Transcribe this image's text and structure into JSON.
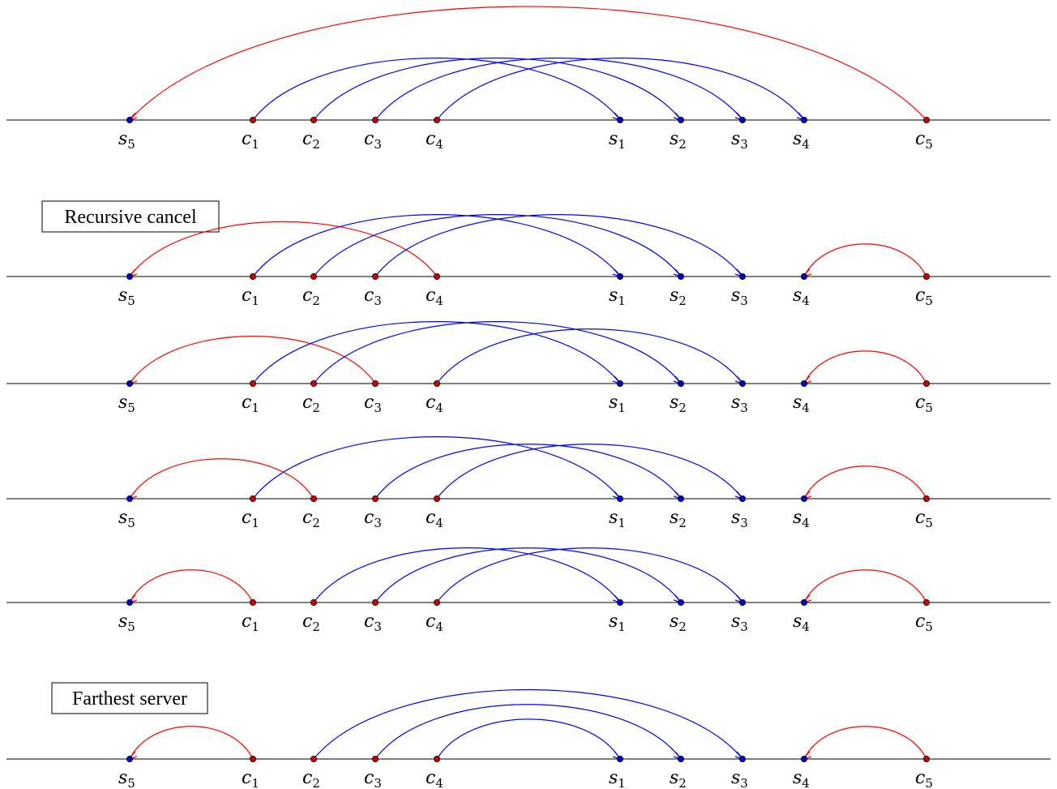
{
  "colors": {
    "client": "#cc0000",
    "server": "#0000cc",
    "match_blue": "#0000ff",
    "match_red": "#ff0000",
    "line": "#000000"
  },
  "nodes": [
    {
      "id": "s5",
      "base": "s",
      "sub": "5",
      "kind": "server"
    },
    {
      "id": "c1",
      "base": "c",
      "sub": "1",
      "kind": "client"
    },
    {
      "id": "c2",
      "base": "c",
      "sub": "2",
      "kind": "client"
    },
    {
      "id": "c3",
      "base": "c",
      "sub": "3",
      "kind": "client"
    },
    {
      "id": "c4",
      "base": "c",
      "sub": "4",
      "kind": "client"
    },
    {
      "id": "s1",
      "base": "s",
      "sub": "1",
      "kind": "server"
    },
    {
      "id": "s2",
      "base": "s",
      "sub": "2",
      "kind": "server"
    },
    {
      "id": "s3",
      "base": "s",
      "sub": "3",
      "kind": "server"
    },
    {
      "id": "s4",
      "base": "s",
      "sub": "4",
      "kind": "server"
    },
    {
      "id": "c5",
      "base": "c",
      "sub": "5",
      "kind": "client"
    }
  ],
  "rows": [
    {
      "tag": "",
      "arcs": [
        {
          "from": "c1",
          "to": "s1",
          "color": "blue"
        },
        {
          "from": "c2",
          "to": "s2",
          "color": "blue"
        },
        {
          "from": "c3",
          "to": "s3",
          "color": "blue"
        },
        {
          "from": "c4",
          "to": "s4",
          "color": "blue"
        },
        {
          "from": "c5",
          "to": "s5",
          "color": "red"
        }
      ]
    },
    {
      "tag": "Recursive cancel",
      "arcs": [
        {
          "from": "c4",
          "to": "s5",
          "color": "red"
        },
        {
          "from": "c1",
          "to": "s1",
          "color": "blue"
        },
        {
          "from": "c2",
          "to": "s2",
          "color": "blue"
        },
        {
          "from": "c3",
          "to": "s3",
          "color": "blue"
        },
        {
          "from": "c5",
          "to": "s4",
          "color": "red"
        }
      ]
    },
    {
      "tag": "",
      "arcs": [
        {
          "from": "c3",
          "to": "s5",
          "color": "red"
        },
        {
          "from": "c1",
          "to": "s1",
          "color": "blue"
        },
        {
          "from": "c2",
          "to": "s2",
          "color": "blue"
        },
        {
          "from": "c4",
          "to": "s3",
          "color": "blue"
        },
        {
          "from": "c5",
          "to": "s4",
          "color": "red"
        }
      ]
    },
    {
      "tag": "",
      "arcs": [
        {
          "from": "c2",
          "to": "s5",
          "color": "red"
        },
        {
          "from": "c1",
          "to": "s1",
          "color": "blue"
        },
        {
          "from": "c3",
          "to": "s2",
          "color": "blue"
        },
        {
          "from": "c4",
          "to": "s3",
          "color": "blue"
        },
        {
          "from": "c5",
          "to": "s4",
          "color": "red"
        }
      ]
    },
    {
      "tag": "",
      "arcs": [
        {
          "from": "c1",
          "to": "s5",
          "color": "red"
        },
        {
          "from": "c2",
          "to": "s1",
          "color": "blue"
        },
        {
          "from": "c3",
          "to": "s2",
          "color": "blue"
        },
        {
          "from": "c4",
          "to": "s3",
          "color": "blue"
        },
        {
          "from": "c5",
          "to": "s4",
          "color": "red"
        }
      ]
    },
    {
      "tag": "Farthest server",
      "arcs": [
        {
          "from": "c1",
          "to": "s5",
          "color": "red"
        },
        {
          "from": "c4",
          "to": "s1",
          "color": "blue"
        },
        {
          "from": "c3",
          "to": "s2",
          "color": "blue"
        },
        {
          "from": "c2",
          "to": "s3",
          "color": "blue"
        },
        {
          "from": "c5",
          "to": "s4",
          "color": "red"
        }
      ]
    }
  ]
}
